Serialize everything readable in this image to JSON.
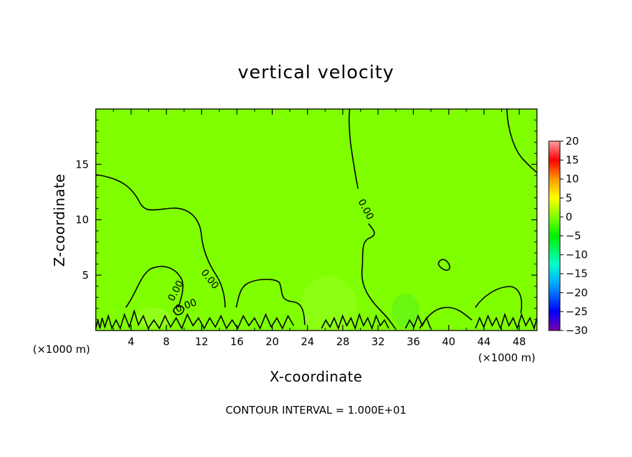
{
  "chart_data": {
    "type": "heatmap",
    "title": "vertical velocity",
    "xlabel": "X-coordinate",
    "ylabel": "Z-coordinate",
    "x_unit_left": "(×1000 m)",
    "x_unit_right": "(×1000 m)",
    "xlim": [
      0,
      50
    ],
    "ylim": [
      0,
      20
    ],
    "x_ticks": [
      "4",
      "8",
      "12",
      "16",
      "20",
      "24",
      "28",
      "32",
      "36",
      "40",
      "44",
      "48"
    ],
    "y_ticks": [
      "5",
      "10",
      "15"
    ],
    "colorbar": {
      "range": [
        -30,
        20
      ],
      "ticks": [
        "20",
        "15",
        "10",
        "5",
        "0",
        "−5",
        "−10",
        "−15",
        "−20",
        "−25",
        "−30"
      ]
    },
    "field_color": "#7fff00",
    "contour_level_label": "0.00",
    "footnote": "CONTOUR INTERVAL = 1.000E+01"
  }
}
